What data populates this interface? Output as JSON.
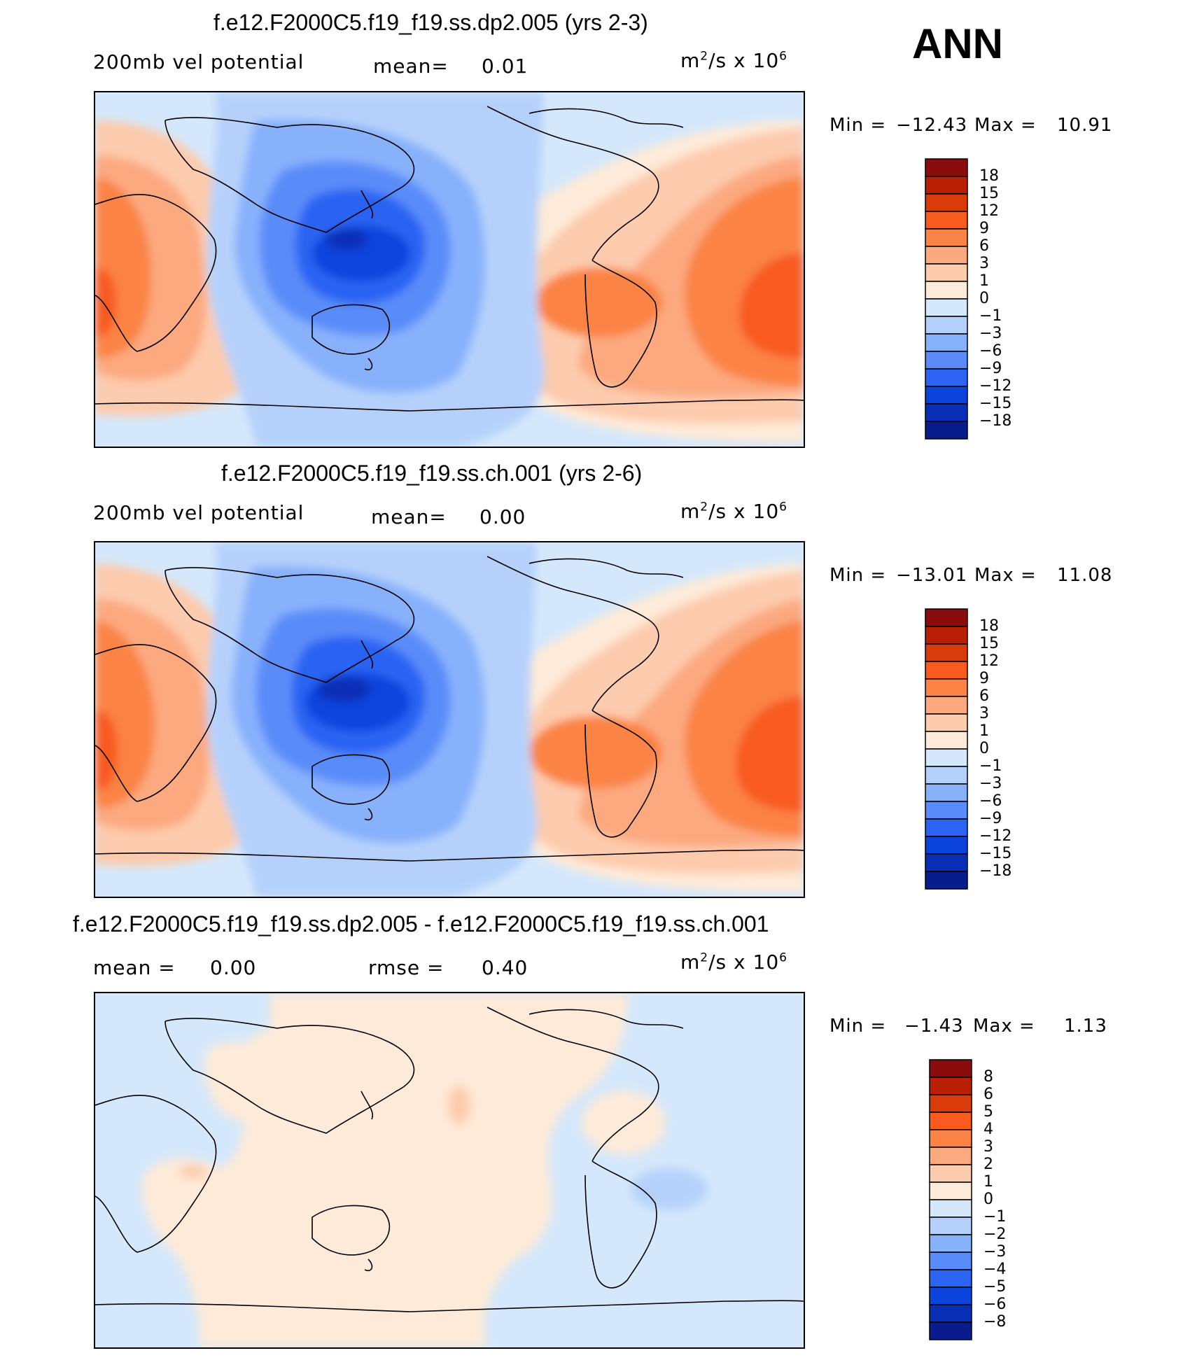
{
  "header": {
    "season": "ANN"
  },
  "units_text": {
    "prefix": "m",
    "sup1": "2",
    "mid": "/s x 10",
    "sup2": "6"
  },
  "panels": [
    {
      "title": "f.e12.F2000C5.f19_f19.ss.dp2.005 (yrs 2-3)",
      "left_label": "200mb vel potential",
      "stat1_label": "mean=",
      "stat1_value": "0.01",
      "stat2_label": "",
      "stat2_value": "",
      "min_label": "Min =",
      "min_value": "−12.43",
      "max_label": "Max =",
      "max_value": "10.91",
      "levels": [
        "18",
        "15",
        "12",
        "9",
        "6",
        "3",
        "1",
        "0",
        "−1",
        "−3",
        "−6",
        "−9",
        "−12",
        "−15",
        "−18"
      ]
    },
    {
      "title": "f.e12.F2000C5.f19_f19.ss.ch.001 (yrs 2-6)",
      "left_label": "200mb vel potential",
      "stat1_label": "mean=",
      "stat1_value": "0.00",
      "stat2_label": "",
      "stat2_value": "",
      "min_label": "Min =",
      "min_value": "−13.01",
      "max_label": "Max =",
      "max_value": "11.08",
      "levels": [
        "18",
        "15",
        "12",
        "9",
        "6",
        "3",
        "1",
        "0",
        "−1",
        "−3",
        "−6",
        "−9",
        "−12",
        "−15",
        "−18"
      ]
    },
    {
      "title": "f.e12.F2000C5.f19_f19.ss.dp2.005 - f.e12.F2000C5.f19_f19.ss.ch.001",
      "left_label": "",
      "stat1_label": "mean =",
      "stat1_value": "0.00",
      "stat2_label": "rmse =",
      "stat2_value": "0.40",
      "min_label": "Min =",
      "min_value": "−1.43",
      "max_label": "Max =",
      "max_value": "1.13",
      "levels": [
        "8",
        "6",
        "5",
        "4",
        "3",
        "2",
        "1",
        "0",
        "−1",
        "−2",
        "−3",
        "−4",
        "−5",
        "−6",
        "−8"
      ]
    }
  ],
  "chart_data": [
    {
      "type": "heatmap",
      "title": "f.e12.F2000C5.f19_f19.ss.dp2.005 (yrs 2-3)",
      "variable": "200mb vel potential",
      "units": "m2/s x 10^6",
      "mean": 0.01,
      "min": -12.43,
      "max": 10.91,
      "contour_levels": [
        -18,
        -15,
        -12,
        -9,
        -6,
        -3,
        -1,
        0,
        1,
        3,
        6,
        9,
        12,
        15,
        18
      ],
      "lon_range": [
        30,
        390
      ],
      "lat_range": [
        -90,
        90
      ]
    },
    {
      "type": "heatmap",
      "title": "f.e12.F2000C5.f19_f19.ss.ch.001 (yrs 2-6)",
      "variable": "200mb vel potential",
      "units": "m2/s x 10^6",
      "mean": 0.0,
      "min": -13.01,
      "max": 11.08,
      "contour_levels": [
        -18,
        -15,
        -12,
        -9,
        -6,
        -3,
        -1,
        0,
        1,
        3,
        6,
        9,
        12,
        15,
        18
      ],
      "lon_range": [
        30,
        390
      ],
      "lat_range": [
        -90,
        90
      ]
    },
    {
      "type": "heatmap",
      "title": "f.e12.F2000C5.f19_f19.ss.dp2.005 - f.e12.F2000C5.f19_f19.ss.ch.001",
      "units": "m2/s x 10^6",
      "mean": 0.0,
      "rmse": 0.4,
      "min": -1.43,
      "max": 1.13,
      "contour_levels": [
        -8,
        -6,
        -5,
        -4,
        -3,
        -2,
        -1,
        0,
        1,
        2,
        3,
        4,
        5,
        6,
        8
      ],
      "lon_range": [
        30,
        390
      ],
      "lat_range": [
        -90,
        90
      ]
    }
  ],
  "colors": {
    "scale": [
      "#8b0c0c",
      "#b81f04",
      "#d93b0b",
      "#f85a20",
      "#fb8345",
      "#fca980",
      "#fdcbad",
      "#feead8",
      "#d5e8fb",
      "#b5d1fb",
      "#88b1fc",
      "#5a8cf9",
      "#2c63f3",
      "#0b44dd",
      "#0a2fb7",
      "#081c8b"
    ]
  }
}
